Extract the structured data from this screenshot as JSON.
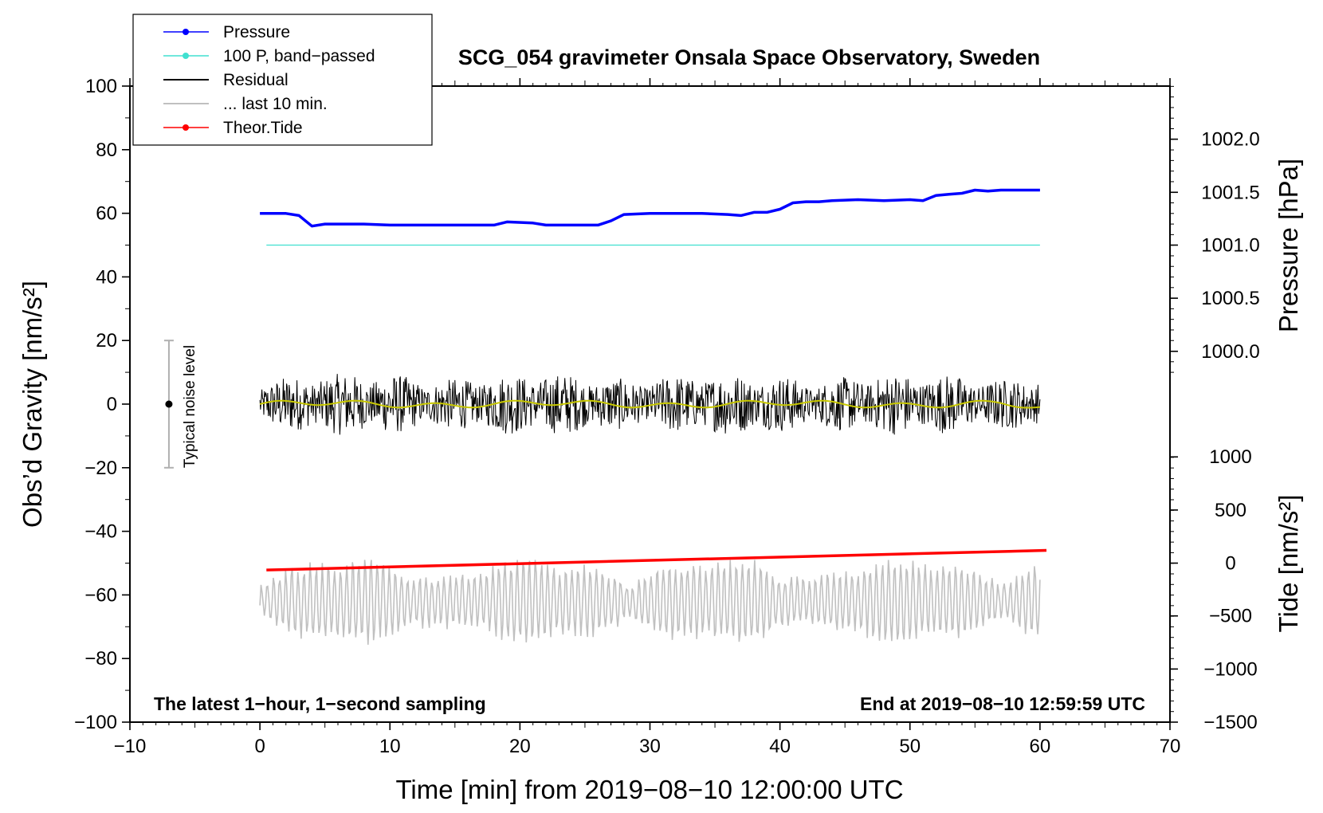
{
  "chart_data": {
    "type": "line",
    "title": "SCG_054 gravimeter Onsala Space Observatory, Sweden",
    "xlabel": "Time [min] from 2019−08−10 12:00:00 UTC",
    "ylabel_left": "Obs’d Gravity [nm/s²]",
    "ylabel_right_pressure": "Pressure [hPa]",
    "ylabel_right_tide": "Tide [nm/s²]",
    "xlim": [
      -10,
      70
    ],
    "ylim": [
      -100,
      100
    ],
    "x_ticks": [
      "−10",
      "0",
      "10",
      "20",
      "30",
      "40",
      "50",
      "60",
      "70"
    ],
    "x_tick_values": [
      -10,
      0,
      10,
      20,
      30,
      40,
      50,
      60,
      70
    ],
    "y_ticks_left": [
      "100",
      "80",
      "60",
      "40",
      "20",
      "0",
      "−20",
      "−40",
      "−60",
      "−80",
      "−100"
    ],
    "y_tick_values_left": [
      100,
      80,
      60,
      40,
      20,
      0,
      -20,
      -40,
      -60,
      -80,
      -100
    ],
    "pressure_axis": {
      "ticks": [
        "1002.0",
        "1001.5",
        "1001.0",
        "1000.5",
        "1000.0"
      ],
      "values": [
        1002.0,
        1001.5,
        1001.0,
        1000.5,
        1000.0
      ],
      "gravity_equivalent": [
        83.3,
        66.6,
        50.0,
        33.3,
        16.6
      ]
    },
    "tide_axis": {
      "ticks": [
        "1000",
        "500",
        "0",
        "−500",
        "−1000",
        "−1500"
      ],
      "values": [
        1000,
        500,
        0,
        -500,
        -1000,
        -1500
      ],
      "gravity_equivalent": [
        -16.6,
        -33.3,
        -50.0,
        -66.6,
        -83.3,
        -100.0
      ]
    },
    "series": [
      {
        "name": "Pressure",
        "color": "#0000ff",
        "unit": "hPa",
        "x": [
          0,
          1,
          2,
          3,
          4,
          5,
          6,
          8,
          10,
          12,
          14,
          16,
          18,
          19,
          21,
          22,
          23,
          24,
          26,
          27,
          28,
          30,
          34,
          36,
          37,
          38,
          39,
          40,
          41,
          42,
          43,
          44,
          46,
          48,
          50,
          51,
          52,
          53,
          54,
          55,
          56,
          57,
          58,
          60
        ],
        "values": [
          1001.3,
          1001.3,
          1001.3,
          1001.28,
          1001.18,
          1001.2,
          1001.2,
          1001.2,
          1001.19,
          1001.19,
          1001.19,
          1001.19,
          1001.19,
          1001.22,
          1001.21,
          1001.19,
          1001.19,
          1001.19,
          1001.19,
          1001.23,
          1001.29,
          1001.3,
          1001.3,
          1001.29,
          1001.28,
          1001.31,
          1001.31,
          1001.34,
          1001.4,
          1001.41,
          1001.41,
          1001.42,
          1001.43,
          1001.42,
          1001.43,
          1001.42,
          1001.47,
          1001.48,
          1001.49,
          1001.52,
          1001.51,
          1001.52,
          1001.52,
          1001.52
        ]
      },
      {
        "name": "100 P, band−passed",
        "color": "#40e0d0",
        "x": [
          0.5,
          60
        ],
        "values": [
          50,
          50
        ]
      },
      {
        "name": "Residual",
        "color": "#000000",
        "x_range": [
          0,
          60
        ],
        "level": 0,
        "amplitude_range": [
          -18,
          15
        ]
      },
      {
        "name": "... last 10 min.",
        "color": "#c0c0c0",
        "x_range": [
          0,
          60
        ],
        "level": -62,
        "amplitude_range": [
          -79,
          -49
        ]
      },
      {
        "name": "Theor.Tide",
        "color": "#ff0000",
        "unit": "nm/s²",
        "x": [
          0.5,
          60.5
        ],
        "values": [
          -65,
          120
        ]
      }
    ],
    "noise_marker": {
      "label": "Typical noise level",
      "x": -7,
      "center": 0,
      "range": [
        -20,
        20
      ]
    },
    "annotations": {
      "left": "The latest 1−hour, 1−second sampling",
      "right": "End at 2019−08−10 12:59:59 UTC"
    },
    "legend_position": "top-left"
  },
  "colors": {
    "pressure": "#0000ff",
    "bandpassed": "#40e0d0",
    "residual": "#000000",
    "residual_smooth": "#c8c800",
    "last10": "#c0c0c0",
    "tide": "#ff0000"
  }
}
